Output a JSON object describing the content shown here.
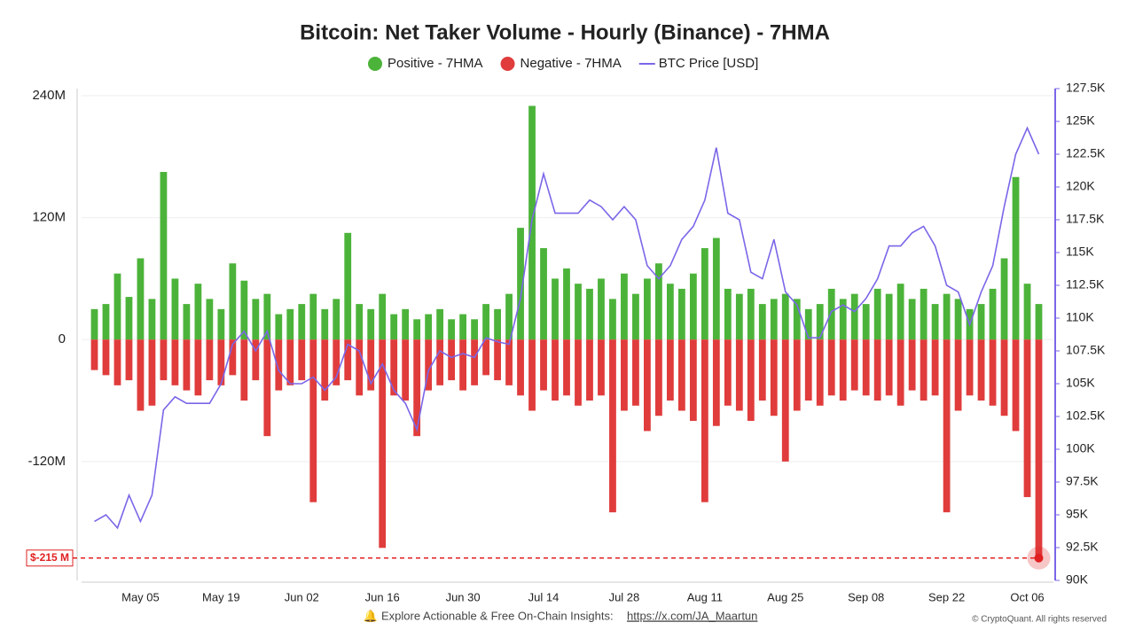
{
  "chart_data": {
    "type": "bar-line",
    "title": "Bitcoin: Net Taker Volume - Hourly (Binance) - 7HMA",
    "x": [
      "Apr 27",
      "Apr 29",
      "May 01",
      "May 03",
      "May 05",
      "May 07",
      "May 09",
      "May 11",
      "May 13",
      "May 15",
      "May 17",
      "May 19",
      "May 21",
      "May 23",
      "May 25",
      "May 27",
      "May 29",
      "May 31",
      "Jun 02",
      "Jun 04",
      "Jun 06",
      "Jun 08",
      "Jun 10",
      "Jun 12",
      "Jun 14",
      "Jun 16",
      "Jun 18",
      "Jun 20",
      "Jun 22",
      "Jun 24",
      "Jun 26",
      "Jun 28",
      "Jun 30",
      "Jul 02",
      "Jul 04",
      "Jul 06",
      "Jul 08",
      "Jul 10",
      "Jul 12",
      "Jul 14",
      "Jul 16",
      "Jul 18",
      "Jul 20",
      "Jul 22",
      "Jul 24",
      "Jul 26",
      "Jul 28",
      "Jul 30",
      "Aug 01",
      "Aug 03",
      "Aug 05",
      "Aug 07",
      "Aug 09",
      "Aug 11",
      "Aug 13",
      "Aug 15",
      "Aug 17",
      "Aug 19",
      "Aug 21",
      "Aug 23",
      "Aug 25",
      "Aug 27",
      "Aug 29",
      "Aug 31",
      "Sep 02",
      "Sep 04",
      "Sep 06",
      "Sep 08",
      "Sep 10",
      "Sep 12",
      "Sep 14",
      "Sep 16",
      "Sep 18",
      "Sep 20",
      "Sep 22",
      "Sep 24",
      "Sep 26",
      "Sep 28",
      "Sep 30",
      "Oct 02",
      "Oct 04",
      "Oct 06",
      "Oct 08"
    ],
    "series": [
      {
        "name": "Positive - 7HMA",
        "color": "#4cb33a",
        "values": [
          30000000,
          35000000,
          65000000,
          42000000,
          80000000,
          40000000,
          165000000,
          60000000,
          35000000,
          55000000,
          40000000,
          30000000,
          75000000,
          58000000,
          40000000,
          45000000,
          25000000,
          30000000,
          35000000,
          45000000,
          30000000,
          40000000,
          105000000,
          35000000,
          30000000,
          45000000,
          25000000,
          30000000,
          20000000,
          25000000,
          30000000,
          20000000,
          25000000,
          20000000,
          35000000,
          30000000,
          45000000,
          110000000,
          230000000,
          90000000,
          60000000,
          70000000,
          55000000,
          50000000,
          60000000,
          40000000,
          65000000,
          45000000,
          60000000,
          75000000,
          55000000,
          50000000,
          65000000,
          90000000,
          100000000,
          50000000,
          45000000,
          50000000,
          35000000,
          40000000,
          45000000,
          40000000,
          30000000,
          35000000,
          50000000,
          40000000,
          45000000,
          35000000,
          50000000,
          45000000,
          55000000,
          40000000,
          50000000,
          35000000,
          45000000,
          40000000,
          30000000,
          35000000,
          50000000,
          80000000,
          160000000,
          55000000,
          35000000
        ]
      },
      {
        "name": "Negative - 7HMA",
        "color": "#e03c3c",
        "values": [
          -30000000,
          -35000000,
          -45000000,
          -40000000,
          -70000000,
          -65000000,
          -40000000,
          -45000000,
          -50000000,
          -55000000,
          -40000000,
          -45000000,
          -35000000,
          -60000000,
          -40000000,
          -95000000,
          -50000000,
          -45000000,
          -40000000,
          -160000000,
          -60000000,
          -45000000,
          -40000000,
          -55000000,
          -50000000,
          -205000000,
          -55000000,
          -60000000,
          -95000000,
          -50000000,
          -45000000,
          -40000000,
          -50000000,
          -45000000,
          -35000000,
          -40000000,
          -45000000,
          -55000000,
          -70000000,
          -50000000,
          -60000000,
          -55000000,
          -65000000,
          -60000000,
          -55000000,
          -170000000,
          -70000000,
          -65000000,
          -90000000,
          -75000000,
          -60000000,
          -70000000,
          -80000000,
          -160000000,
          -85000000,
          -65000000,
          -70000000,
          -80000000,
          -60000000,
          -75000000,
          -120000000,
          -70000000,
          -60000000,
          -65000000,
          -55000000,
          -60000000,
          -50000000,
          -55000000,
          -60000000,
          -55000000,
          -65000000,
          -50000000,
          -60000000,
          -55000000,
          -170000000,
          -70000000,
          -55000000,
          -60000000,
          -65000000,
          -75000000,
          -90000000,
          -155000000,
          -215000000
        ]
      },
      {
        "name": "BTC Price [USD]",
        "color": "#7b66e8",
        "axis": "y2",
        "line": true,
        "values": [
          94500,
          95000,
          94000,
          96500,
          94500,
          96500,
          103000,
          104000,
          103500,
          103500,
          103500,
          105000,
          108000,
          109000,
          107500,
          109000,
          106000,
          105000,
          105000,
          105500,
          104500,
          105500,
          108000,
          107500,
          105000,
          106500,
          104500,
          103500,
          101500,
          106000,
          107500,
          107000,
          107300,
          107000,
          108500,
          108200,
          108000,
          111500,
          117500,
          121000,
          118000,
          118000,
          118000,
          119000,
          118500,
          117500,
          118500,
          117500,
          114000,
          113000,
          114000,
          116000,
          117000,
          119000,
          123000,
          118000,
          117500,
          113500,
          113000,
          116000,
          112000,
          111000,
          108500,
          108500,
          110500,
          111000,
          110500,
          111500,
          113000,
          115500,
          115500,
          116500,
          117000,
          115500,
          112500,
          112000,
          109500,
          112000,
          114000,
          118500,
          122500,
          124500,
          122500
        ]
      }
    ],
    "xticks": [
      "May 05",
      "May 19",
      "Jun 02",
      "Jun 16",
      "Jun 30",
      "Jul 14",
      "Jul 28",
      "Aug 11",
      "Aug 25",
      "Sep 08",
      "Sep 22",
      "Oct 06"
    ],
    "ylim": [
      -237000000,
      247000000
    ],
    "yticks": [
      {
        "value": -120000000,
        "label": "-120M"
      },
      0,
      {
        "value": 120000000,
        "label": "120M"
      },
      {
        "value": 240000000,
        "label": "240M"
      }
    ],
    "y2lim": [
      90000,
      127500
    ],
    "y2ticks": [
      {
        "value": 90000,
        "label": "90K"
      },
      {
        "value": 92500,
        "label": "92.5K"
      },
      {
        "value": 95000,
        "label": "95K"
      },
      {
        "value": 97500,
        "label": "97.5K"
      },
      {
        "value": 100000,
        "label": "100K"
      },
      {
        "value": 102500,
        "label": "102.5K"
      },
      {
        "value": 105000,
        "label": "105K"
      },
      {
        "value": 107500,
        "label": "107.5K"
      },
      {
        "value": 110000,
        "label": "110K"
      },
      {
        "value": 112500,
        "label": "112.5K"
      },
      {
        "value": 115000,
        "label": "115K"
      },
      {
        "value": 117500,
        "label": "117.5K"
      },
      {
        "value": 120000,
        "label": "120K"
      },
      {
        "value": 122500,
        "label": "122.5K"
      },
      {
        "value": 125000,
        "label": "125K"
      },
      {
        "value": 127500,
        "label": "127.5K"
      }
    ],
    "grid": true,
    "annotation": {
      "value": -215000000,
      "label": "$-215 M"
    }
  },
  "footer": {
    "text": "Explore Actionable & Free On-Chain Insights:",
    "link": "https://x.com/JA_Maartun",
    "copyright": "© CryptoQuant. All rights reserved"
  }
}
